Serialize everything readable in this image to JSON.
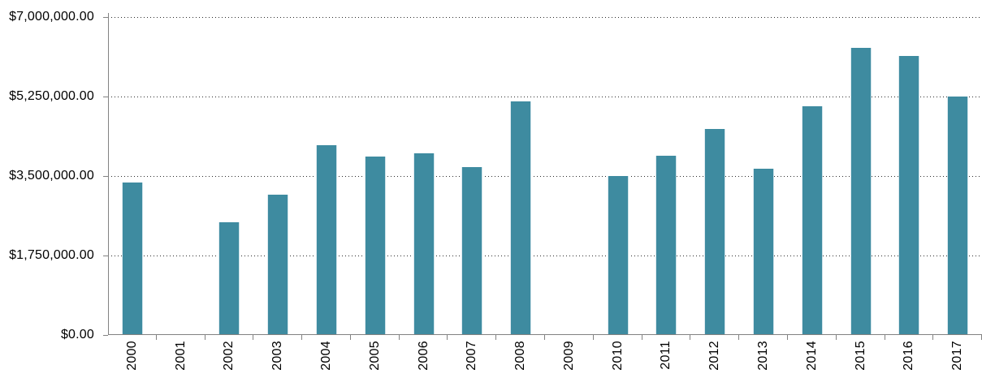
{
  "chart_data": {
    "type": "bar",
    "title": "",
    "xlabel": "",
    "ylabel": "",
    "categories": [
      "2000",
      "2001",
      "2002",
      "2003",
      "2004",
      "2005",
      "2006",
      "2007",
      "2008",
      "2009",
      "2010",
      "2011",
      "2012",
      "2013",
      "2014",
      "2015",
      "2016",
      "2017"
    ],
    "values": [
      3350000,
      0,
      2490000,
      3090000,
      4180000,
      3930000,
      4000000,
      3700000,
      5140000,
      0,
      3500000,
      3950000,
      4530000,
      3670000,
      5030000,
      6320000,
      6140000,
      5250000
    ],
    "ylim": [
      0,
      7000000
    ],
    "y_ticks": [
      {
        "value": 7000000,
        "label": "$7,000,000.00"
      },
      {
        "value": 5250000,
        "label": "$5,250,000.00"
      },
      {
        "value": 3500000,
        "label": "$3,500,000.00"
      },
      {
        "value": 1750000,
        "label": "$1,750,000.00"
      },
      {
        "value": 0,
        "label": "$0.00"
      }
    ],
    "grid": true,
    "gridline_style": "dotted",
    "legend": false,
    "bar_color": "#3E8BA0",
    "axis_color": "#828282",
    "gridline_color": "#2b2b2b",
    "text_color": "#000000",
    "background_color": "#FFFFFF"
  }
}
